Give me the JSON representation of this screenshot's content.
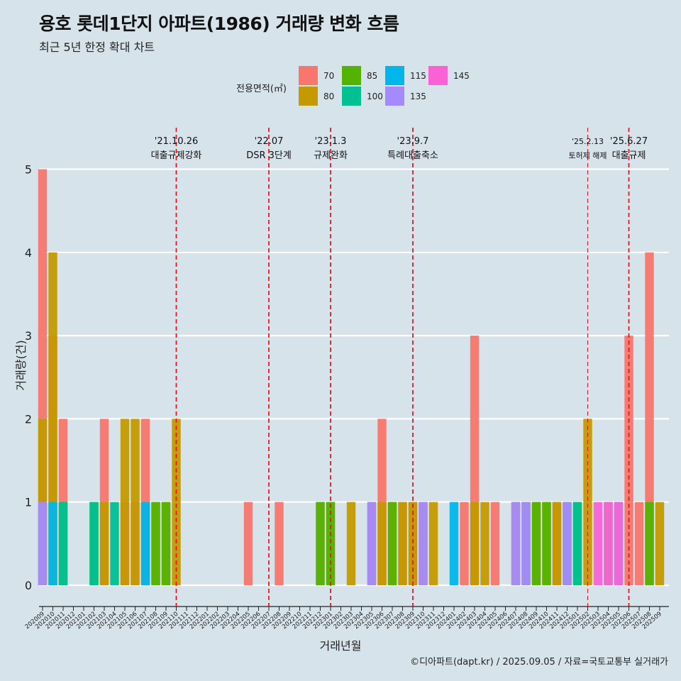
{
  "title": "용호 롯데1단지 아파트(1986) 거래량 변화 흐름",
  "subtitle": "최근 5년 한정 확대 차트",
  "legend_title": "전용면적(㎡)",
  "caption": "©디아파트(dapt.kr) / 2025.09.05 / 자료=국토교통부 실거래가",
  "colors": {
    "70": "#f8766d",
    "80": "#c49a00",
    "85": "#53b400",
    "100": "#00c094",
    "115": "#00b6eb",
    "135": "#a58aff",
    "145": "#fb61d7",
    "background": "#d6e3ea",
    "grid": "#ffffff",
    "event_line": "#e41a1c"
  },
  "chart_data": {
    "type": "bar",
    "xlabel": "거래년월",
    "ylabel": "거래량(건)",
    "ylim": [
      0,
      5
    ],
    "yticks": [
      0,
      1,
      2,
      3,
      4,
      5
    ],
    "grid": true,
    "legend_position": "top",
    "series": [
      {
        "name": "70"
      },
      {
        "name": "80"
      },
      {
        "name": "85"
      },
      {
        "name": "100"
      },
      {
        "name": "115"
      },
      {
        "name": "135"
      },
      {
        "name": "145"
      }
    ],
    "categories": [
      "202009",
      "202010",
      "202011",
      "202012",
      "202101",
      "202102",
      "202103",
      "202104",
      "202105",
      "202106",
      "202107",
      "202108",
      "202109",
      "202110",
      "202111",
      "202112",
      "202201",
      "202202",
      "202203",
      "202204",
      "202205",
      "202206",
      "202207",
      "202208",
      "202209",
      "202210",
      "202211",
      "202212",
      "202301",
      "202302",
      "202303",
      "202304",
      "202305",
      "202306",
      "202307",
      "202308",
      "202309",
      "202310",
      "202311",
      "202312",
      "202401",
      "202402",
      "202403",
      "202404",
      "202405",
      "202406",
      "202407",
      "202408",
      "202409",
      "202410",
      "202411",
      "202412",
      "202501",
      "202502",
      "202503",
      "202504",
      "202505",
      "202506",
      "202507",
      "202508",
      "202509"
    ],
    "data": [
      {
        "month": "202009",
        "values": {
          "70": 5,
          "80": 2,
          "135": 1
        }
      },
      {
        "month": "202010",
        "values": {
          "70": 3,
          "80": 4,
          "115": 1
        }
      },
      {
        "month": "202011",
        "values": {
          "70": 2,
          "85": 1,
          "100": 1
        }
      },
      {
        "month": "202102",
        "values": {
          "85": 1,
          "100": 1
        }
      },
      {
        "month": "202103",
        "values": {
          "70": 2,
          "80": 1
        }
      },
      {
        "month": "202104",
        "values": {
          "100": 1
        }
      },
      {
        "month": "202105",
        "values": {
          "70": 1,
          "80": 2
        }
      },
      {
        "month": "202106",
        "values": {
          "70": 1,
          "80": 2
        }
      },
      {
        "month": "202107",
        "values": {
          "115": 1,
          "70": 2
        }
      },
      {
        "month": "202108",
        "values": {
          "80": 1,
          "85": 1
        }
      },
      {
        "month": "202109",
        "values": {
          "80": 1,
          "85": 1
        }
      },
      {
        "month": "202110",
        "values": {
          "80": 2
        }
      },
      {
        "month": "202205",
        "values": {
          "70": 1
        }
      },
      {
        "month": "202208",
        "values": {
          "70": 1
        }
      },
      {
        "month": "202212",
        "values": {
          "70": 1,
          "85": 1
        }
      },
      {
        "month": "202301",
        "values": {
          "85": 1,
          "80": 1
        }
      },
      {
        "month": "202303",
        "values": {
          "80": 1
        }
      },
      {
        "month": "202305",
        "values": {
          "135": 1,
          "80": 1
        }
      },
      {
        "month": "202306",
        "values": {
          "70": 2,
          "80": 1
        }
      },
      {
        "month": "202307",
        "values": {
          "85": 1,
          "80": 1
        }
      },
      {
        "month": "202308",
        "values": {
          "70": 1,
          "80": 1
        }
      },
      {
        "month": "202309",
        "values": {
          "70": 1,
          "80": 1
        }
      },
      {
        "month": "202310",
        "values": {
          "135": 1,
          "80": 1
        }
      },
      {
        "month": "202311",
        "values": {
          "80": 1
        }
      },
      {
        "month": "202401",
        "values": {
          "115": 1
        }
      },
      {
        "month": "202402",
        "values": {
          "70": 1
        }
      },
      {
        "month": "202403",
        "values": {
          "70": 3,
          "80": 1
        }
      },
      {
        "month": "202404",
        "values": {
          "80": 1
        }
      },
      {
        "month": "202405",
        "values": {
          "70": 1
        }
      },
      {
        "month": "202407",
        "values": {
          "135": 1,
          "80": 1
        }
      },
      {
        "month": "202408",
        "values": {
          "135": 1,
          "85": 1
        }
      },
      {
        "month": "202409",
        "values": {
          "85": 1,
          "80": 1
        }
      },
      {
        "month": "202410",
        "values": {
          "80": 1,
          "85": 1
        }
      },
      {
        "month": "202411",
        "values": {
          "80": 1,
          "70": 1
        }
      },
      {
        "month": "202412",
        "values": {
          "135": 1,
          "85": 1
        }
      },
      {
        "month": "202501",
        "values": {
          "85": 1,
          "100": 1
        }
      },
      {
        "month": "202502",
        "values": {
          "80": 2
        }
      },
      {
        "month": "202503",
        "values": {
          "145": 1
        }
      },
      {
        "month": "202504",
        "values": {
          "85": 1,
          "145": 1
        }
      },
      {
        "month": "202505",
        "values": {
          "115": 1,
          "145": 1
        }
      },
      {
        "month": "202506",
        "values": {
          "70": 3
        }
      },
      {
        "month": "202507",
        "values": {
          "70": 1
        }
      },
      {
        "month": "202508",
        "values": {
          "70": 4,
          "85": 1
        }
      },
      {
        "month": "202509",
        "values": {
          "80": 1
        }
      }
    ],
    "events": [
      {
        "month": "202110",
        "date": "'21.10.26",
        "label": "대출규제강화",
        "major": true
      },
      {
        "month": "202207",
        "date": "'22.07",
        "label": "DSR 3단계",
        "major": true
      },
      {
        "month": "202301",
        "date": "'23.1.3",
        "label": "규제완화",
        "major": true
      },
      {
        "month": "202309",
        "date": "'23.9.7",
        "label": "특례대출축소",
        "major": true
      },
      {
        "month": "202502",
        "date": "'25.2.13",
        "label": "토허제 해제",
        "major": false
      },
      {
        "month": "202506",
        "date": "'25.6.27",
        "label": "대출규제",
        "major": true
      }
    ]
  }
}
